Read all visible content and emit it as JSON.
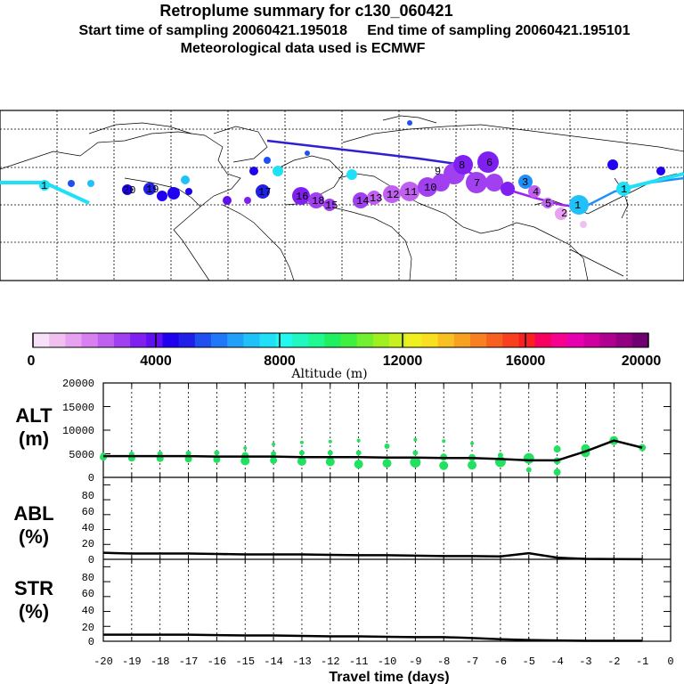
{
  "header": {
    "title": "Retroplume summary for c130_060421",
    "sampling_line": "Start time of sampling 20060421.195018     End time of sampling 20060421.195101",
    "met_line": "Meteorological data used is ECMWF"
  },
  "colorbar": {
    "ticks": [
      "0",
      "4000",
      "8000",
      "12000",
      "16000",
      "20000"
    ],
    "title": "Altitude (m)",
    "colors": [
      "#f8e0f8",
      "#f0c0f0",
      "#e8a0f0",
      "#d880f0",
      "#c060f0",
      "#a040f0",
      "#8020f0",
      "#6010f0",
      "#2000f0",
      "#2020e8",
      "#2050f0",
      "#2078f8",
      "#20a0f8",
      "#20c0f8",
      "#20e0f8",
      "#20f8f0",
      "#20f8c0",
      "#20f890",
      "#20f060",
      "#40f040",
      "#70f030",
      "#a0f020",
      "#c8f020",
      "#f0f020",
      "#f8e020",
      "#f8c020",
      "#f8a020",
      "#f88020",
      "#f86020",
      "#f84020",
      "#f82020",
      "#f80060",
      "#f80090",
      "#e800b0",
      "#d000a0",
      "#b00090",
      "#900080",
      "#700070"
    ]
  },
  "map": {
    "point_labels": [
      "1",
      "1",
      "1",
      "2",
      "3",
      "4",
      "5",
      "6",
      "7",
      "8",
      "9",
      "10",
      "11",
      "12",
      "13",
      "14",
      "15",
      "16",
      "17",
      "18",
      "19",
      "20"
    ]
  },
  "chart_data": [
    {
      "type": "scatter",
      "panel": "ALT",
      "ylabel": "ALT\n(m)",
      "ylabel_lines": [
        "ALT",
        "(m)"
      ],
      "yticks": [
        "0",
        "5000",
        "10000",
        "15000",
        "20000"
      ],
      "ylim": [
        0,
        20000
      ],
      "xlim": [
        -20,
        0
      ],
      "median_line": {
        "x": [
          -20,
          -19,
          -18,
          -17,
          -16,
          -15,
          -14,
          -13,
          -12,
          -11,
          -10,
          -9,
          -8,
          -7,
          -6,
          -5,
          -4,
          -3,
          -2,
          -1
        ],
        "y": [
          4500,
          4500,
          4500,
          4500,
          4400,
          4400,
          4400,
          4300,
          4300,
          4300,
          4200,
          4200,
          4100,
          4100,
          3900,
          3600,
          3600,
          5500,
          7800,
          6300
        ]
      },
      "scatter_color": "#22e060",
      "points": [
        {
          "x": -20,
          "y": 4300,
          "r": 4
        },
        {
          "x": -20,
          "y": 4700,
          "r": 3
        },
        {
          "x": -19,
          "y": 4100,
          "r": 4
        },
        {
          "x": -19,
          "y": 4900,
          "r": 3
        },
        {
          "x": -18,
          "y": 4000,
          "r": 4
        },
        {
          "x": -18,
          "y": 5000,
          "r": 3
        },
        {
          "x": -17,
          "y": 3900,
          "r": 4
        },
        {
          "x": -17,
          "y": 5100,
          "r": 3
        },
        {
          "x": -16,
          "y": 3800,
          "r": 4
        },
        {
          "x": -16,
          "y": 5200,
          "r": 3
        },
        {
          "x": -15,
          "y": 3500,
          "r": 5
        },
        {
          "x": -15,
          "y": 4600,
          "r": 4
        },
        {
          "x": -15,
          "y": 6200,
          "r": 2
        },
        {
          "x": -14,
          "y": 3600,
          "r": 4
        },
        {
          "x": -14,
          "y": 5000,
          "r": 3
        },
        {
          "x": -14,
          "y": 7000,
          "r": 2
        },
        {
          "x": -13,
          "y": 3400,
          "r": 5
        },
        {
          "x": -13,
          "y": 5200,
          "r": 3
        },
        {
          "x": -13,
          "y": 7400,
          "r": 2
        },
        {
          "x": -12,
          "y": 3300,
          "r": 5
        },
        {
          "x": -12,
          "y": 5200,
          "r": 3
        },
        {
          "x": -12,
          "y": 7600,
          "r": 2
        },
        {
          "x": -11,
          "y": 2800,
          "r": 5
        },
        {
          "x": -11,
          "y": 5200,
          "r": 3
        },
        {
          "x": -11,
          "y": 7800,
          "r": 2
        },
        {
          "x": -10,
          "y": 3000,
          "r": 5
        },
        {
          "x": -10,
          "y": 6600,
          "r": 3
        },
        {
          "x": -9,
          "y": 3200,
          "r": 6
        },
        {
          "x": -9,
          "y": 5200,
          "r": 3
        },
        {
          "x": -9,
          "y": 8000,
          "r": 2
        },
        {
          "x": -8,
          "y": 2500,
          "r": 5
        },
        {
          "x": -8,
          "y": 4300,
          "r": 4
        },
        {
          "x": -8,
          "y": 7700,
          "r": 2
        },
        {
          "x": -7,
          "y": 2600,
          "r": 5
        },
        {
          "x": -7,
          "y": 4200,
          "r": 4
        },
        {
          "x": -7,
          "y": 7200,
          "r": 2
        },
        {
          "x": -6,
          "y": 3300,
          "r": 6
        },
        {
          "x": -6,
          "y": 4700,
          "r": 3
        },
        {
          "x": -5,
          "y": 1600,
          "r": 3
        },
        {
          "x": -5,
          "y": 4000,
          "r": 6
        },
        {
          "x": -4,
          "y": 1100,
          "r": 4
        },
        {
          "x": -4,
          "y": 3500,
          "r": 4
        },
        {
          "x": -4,
          "y": 6000,
          "r": 4
        },
        {
          "x": -3,
          "y": 5200,
          "r": 5
        },
        {
          "x": -3,
          "y": 6100,
          "r": 5
        },
        {
          "x": -2,
          "y": 7800,
          "r": 5
        },
        {
          "x": -1,
          "y": 6300,
          "r": 4
        }
      ]
    },
    {
      "type": "line",
      "panel": "ABL",
      "ylabel": "ABL\n(%)",
      "ylabel_lines": [
        "ABL",
        "(%)"
      ],
      "yticks": [
        "0",
        "20",
        "40",
        "60",
        "80"
      ],
      "ylim": [
        0,
        100
      ],
      "xlim": [
        -20,
        0
      ],
      "x": [
        -20,
        -19,
        -18,
        -17,
        -16,
        -15,
        -14,
        -13,
        -12,
        -11,
        -10,
        -9,
        -8,
        -7,
        -6,
        -5,
        -4,
        -3,
        -2,
        -1
      ],
      "values": [
        8,
        7,
        7,
        7,
        6.5,
        6,
        6,
        6,
        5.5,
        5,
        5,
        4.5,
        4,
        4,
        3.5,
        7.5,
        2,
        0.5,
        0.3,
        0.2
      ]
    },
    {
      "type": "line",
      "panel": "STR",
      "ylabel": "STR\n(%)",
      "ylabel_lines": [
        "STR",
        "(%)"
      ],
      "yticks": [
        "0",
        "20",
        "40",
        "60",
        "80"
      ],
      "ylim": [
        0,
        100
      ],
      "xlim": [
        -20,
        0
      ],
      "x": [
        -20,
        -19,
        -18,
        -17,
        -16,
        -15,
        -14,
        -13,
        -12,
        -11,
        -10,
        -9,
        -8,
        -7,
        -6,
        -5,
        -4,
        -3,
        -2,
        -1
      ],
      "values": [
        8,
        8,
        8,
        8,
        7.5,
        7,
        7,
        6.5,
        6,
        6,
        5.5,
        5,
        5,
        4,
        2.5,
        1.5,
        1,
        0.5,
        0.5,
        0.5
      ]
    }
  ],
  "xaxis": {
    "ticks": [
      "-20",
      "-19",
      "-18",
      "-17",
      "-16",
      "-15",
      "-14",
      "-13",
      "-12",
      "-11",
      "-10",
      "-9",
      "-8",
      "-7",
      "-6",
      "-5",
      "-4",
      "-3",
      "-2",
      "-1",
      "0"
    ],
    "label": "Travel time (days)"
  }
}
